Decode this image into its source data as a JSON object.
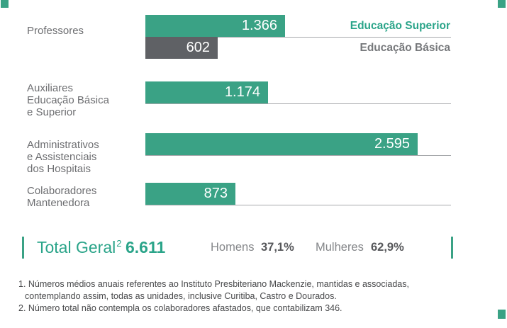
{
  "colors": {
    "teal": "#3aa285",
    "teal_text": "#2aa489",
    "gray_bar": "#5f6165",
    "row_label": "#6d6e71",
    "legend_basic": "#76787b",
    "stat_label": "#85878a",
    "stat_value": "#56575a",
    "baseline": "#a7a9ac",
    "footnote": "#47484a",
    "bar_value_text": "#ffffff"
  },
  "chart_data": {
    "type": "bar",
    "orientation": "horizontal",
    "value_axis_hidden": true,
    "legend": [
      {
        "label": "Educação Superior",
        "color": "#3aa285"
      },
      {
        "label": "Educação Básica",
        "color": "#5f6165"
      }
    ],
    "rows": [
      {
        "label_lines": [
          "Professores"
        ],
        "bars": [
          {
            "series": "Educação Superior",
            "value": 1366,
            "display": "1.366"
          },
          {
            "series": "Educação Básica",
            "value": 602,
            "display": "602"
          }
        ]
      },
      {
        "label_lines": [
          "Auxiliares",
          "Educação Básica",
          "e Superior"
        ],
        "bars": [
          {
            "series": "Educação Superior",
            "value": 1174,
            "display": "1.174"
          }
        ]
      },
      {
        "label_lines": [
          "Administrativos",
          "e Assistenciais",
          "dos Hospitais"
        ],
        "bars": [
          {
            "series": "Educação Superior",
            "value": 2595,
            "display": "2.595"
          }
        ]
      },
      {
        "label_lines": [
          "Colaboradores",
          "Mantenedora"
        ],
        "bars": [
          {
            "series": "Educação Superior",
            "value": 873,
            "display": "873"
          }
        ]
      }
    ],
    "total": {
      "label": "Total Geral",
      "footnote_ref": "2",
      "value": "6.611",
      "stats": [
        {
          "label": "Homens",
          "value": "37,1%"
        },
        {
          "label": "Mulheres",
          "value": "62,9%"
        }
      ]
    },
    "footnotes": [
      {
        "lines": [
          "1. Números médios anuais referentes ao Instituto Presbiteriano Mackenzie, mantidas e associadas,",
          "contemplando assim, todas as unidades, inclusive Curitiba, Castro e Dourados."
        ]
      },
      {
        "lines": [
          "2. Número total não contempla os colaboradores afastados, que contabilizam 346."
        ]
      }
    ]
  }
}
